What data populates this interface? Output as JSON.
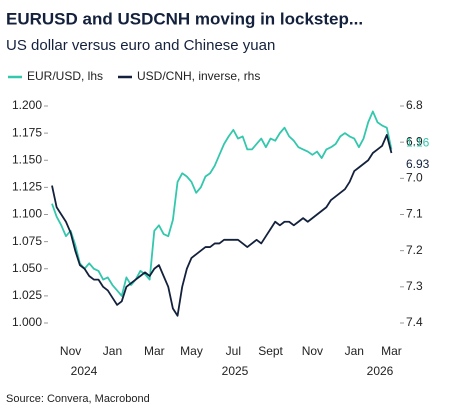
{
  "chart_data": {
    "type": "line",
    "title": "EURUSD and USDCNH moving in lockstep...",
    "subtitle": "US dollar versus euro and Chinese yuan",
    "source": "Source: Convera, Macrobond",
    "legend": "top-left",
    "categories": [
      null,
      null,
      null,
      null,
      "Nov",
      null,
      null,
      null,
      null,
      null,
      null,
      null,
      null,
      "Jan",
      null,
      null,
      null,
      null,
      null,
      null,
      null,
      null,
      "Mar",
      null,
      null,
      null,
      null,
      null,
      null,
      null,
      "May",
      null,
      null,
      null,
      null,
      null,
      null,
      null,
      null,
      "Jul",
      null,
      null,
      null,
      null,
      null,
      null,
      null,
      "Sept",
      null,
      null,
      null,
      null,
      null,
      null,
      null,
      null,
      "Nov",
      null,
      null,
      null,
      null,
      null,
      null,
      null,
      null,
      "Jan",
      null,
      null,
      null,
      null,
      null,
      null,
      null,
      "Mar"
    ],
    "years": [
      "2024",
      "2025",
      "2026"
    ],
    "series": [
      {
        "name": "EUR/USD, lhs",
        "color": "#33c7ad",
        "values": [
          1.11,
          1.098,
          1.09,
          1.08,
          1.085,
          1.072,
          1.055,
          1.05,
          1.055,
          1.05,
          1.048,
          1.04,
          1.042,
          1.035,
          1.03,
          1.025,
          1.042,
          1.035,
          1.04,
          1.048,
          1.045,
          1.04,
          1.085,
          1.09,
          1.082,
          1.08,
          1.095,
          1.13,
          1.138,
          1.135,
          1.13,
          1.12,
          1.125,
          1.135,
          1.138,
          1.145,
          1.155,
          1.165,
          1.172,
          1.178,
          1.17,
          1.172,
          1.16,
          1.16,
          1.165,
          1.17,
          1.162,
          1.17,
          1.168,
          1.175,
          1.18,
          1.172,
          1.168,
          1.162,
          1.16,
          1.158,
          1.155,
          1.158,
          1.152,
          1.16,
          1.162,
          1.165,
          1.172,
          1.175,
          1.172,
          1.17,
          1.162,
          1.17,
          1.185,
          1.195,
          1.185,
          1.182,
          1.18,
          1.16
        ]
      },
      {
        "name": "USD/CNH, inverse, rhs",
        "color": "#14213d",
        "axis": "y2",
        "values": [
          7.02,
          7.08,
          7.1,
          7.12,
          7.15,
          7.2,
          7.24,
          7.25,
          7.27,
          7.28,
          7.28,
          7.3,
          7.31,
          7.33,
          7.35,
          7.34,
          7.3,
          7.29,
          7.28,
          7.27,
          7.26,
          7.27,
          7.25,
          7.24,
          7.27,
          7.3,
          7.36,
          7.38,
          7.3,
          7.25,
          7.22,
          7.21,
          7.2,
          7.19,
          7.19,
          7.18,
          7.18,
          7.17,
          7.17,
          7.17,
          7.17,
          7.18,
          7.19,
          7.18,
          7.17,
          7.18,
          7.16,
          7.14,
          7.12,
          7.13,
          7.12,
          7.12,
          7.13,
          7.12,
          7.11,
          7.12,
          7.11,
          7.1,
          7.09,
          7.08,
          7.06,
          7.05,
          7.04,
          7.03,
          7.01,
          6.98,
          6.97,
          6.96,
          6.95,
          6.93,
          6.92,
          6.91,
          6.88,
          6.93
        ]
      }
    ],
    "ylim": [
      1.0,
      1.2
    ],
    "yticks": [
      {
        "value": 1.0,
        "label": "1.000"
      },
      1.025,
      {
        "value": 1.05,
        "label": "1.050"
      },
      1.075,
      {
        "value": 1.1,
        "label": "1.100"
      },
      1.125,
      {
        "value": 1.15,
        "label": "1.150"
      },
      1.175,
      {
        "value": 1.2,
        "label": "1.200"
      }
    ],
    "y2lim": [
      7.4,
      6.8
    ],
    "y2ticks": [
      6.8,
      6.9,
      {
        "value": 7.0,
        "label": "7.0"
      },
      7.1,
      7.2,
      7.3,
      7.4
    ],
    "annotations": [
      {
        "text": "1.16",
        "value": 1.16,
        "axis": "y"
      },
      {
        "text": "6.93",
        "value": 6.93,
        "axis": "y2"
      }
    ]
  }
}
